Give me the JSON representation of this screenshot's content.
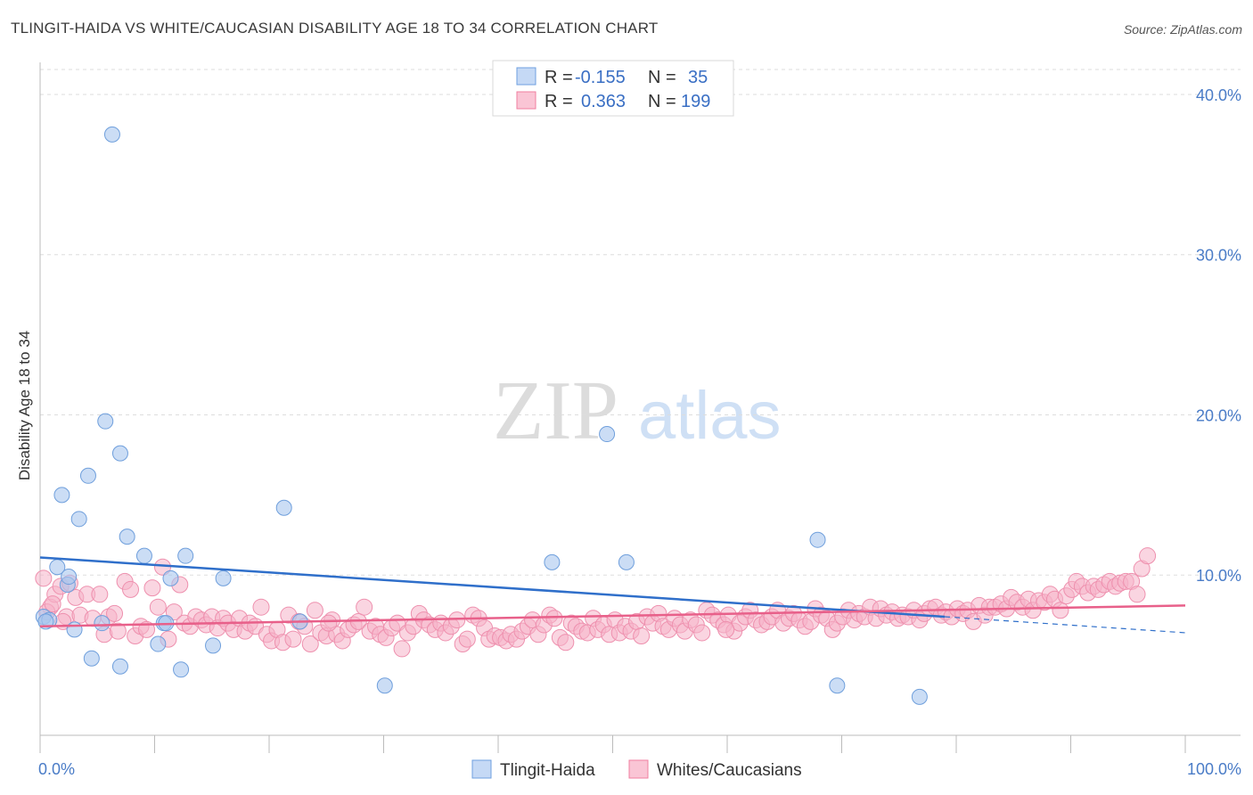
{
  "title": "TLINGIT-HAIDA VS WHITE/CAUCASIAN DISABILITY AGE 18 TO 34 CORRELATION CHART",
  "source": "Source: ZipAtlas.com",
  "watermark": {
    "zip": "ZIP",
    "atlas": "atlas"
  },
  "legend_top": [
    {
      "r_label": "R =",
      "r_value": "-0.155",
      "n_label": "N =",
      "n_value": "35",
      "color": "#6fa0e0",
      "fill": "#c5d9f5"
    },
    {
      "r_label": "R =",
      "r_value": "0.363",
      "n_label": "N =",
      "n_value": "199",
      "color": "#f07fa0",
      "fill": "#fac5d5"
    }
  ],
  "colors": {
    "blue_line": "#2f6fca",
    "pink_line": "#e8608a",
    "blue_point": "#a9c6ee",
    "pink_point": "#f6b3c8",
    "axis_text": "#4a7cc7"
  },
  "chart_data": {
    "type": "scatter",
    "title": "TLINGIT-HAIDA VS WHITE/CAUCASIAN DISABILITY AGE 18 TO 34 CORRELATION CHART",
    "xlabel": "",
    "ylabel": "Disability Age 18 to 34",
    "xlim": [
      0,
      100
    ],
    "ylim": [
      0,
      42
    ],
    "x_tick_labels": [
      "0.0%",
      "100.0%"
    ],
    "y_ticks": [
      10,
      20,
      30,
      40
    ],
    "y_tick_labels": [
      "10.0%",
      "20.0%",
      "30.0%",
      "40.0%"
    ],
    "grid": true,
    "legend_position": "top-center",
    "series": [
      {
        "name": "Tlingit-Haida",
        "r": -0.155,
        "n": 35,
        "trend": {
          "x0": 0,
          "y0": 11.1,
          "x1": 79,
          "y1": 7.4,
          "dashed_to_x": 100,
          "dashed_to_y": 6.4
        },
        "points": [
          [
            0.3,
            7.4
          ],
          [
            0.8,
            7.2
          ],
          [
            1.5,
            10.5
          ],
          [
            1.9,
            15.0
          ],
          [
            2.4,
            9.4
          ],
          [
            2.5,
            9.9
          ],
          [
            3.0,
            6.6
          ],
          [
            3.4,
            13.5
          ],
          [
            4.2,
            16.2
          ],
          [
            4.5,
            4.8
          ],
          [
            5.4,
            7.0
          ],
          [
            5.7,
            19.6
          ],
          [
            6.3,
            37.5
          ],
          [
            7.0,
            4.3
          ],
          [
            7.0,
            17.6
          ],
          [
            7.6,
            12.4
          ],
          [
            9.1,
            11.2
          ],
          [
            10.3,
            5.7
          ],
          [
            10.8,
            7.0
          ],
          [
            11.0,
            7.0
          ],
          [
            11.4,
            9.8
          ],
          [
            12.3,
            4.1
          ],
          [
            12.7,
            11.2
          ],
          [
            15.1,
            5.6
          ],
          [
            16.0,
            9.8
          ],
          [
            21.3,
            14.2
          ],
          [
            22.7,
            7.1
          ],
          [
            30.1,
            3.1
          ],
          [
            44.7,
            10.8
          ],
          [
            49.5,
            18.8
          ],
          [
            51.2,
            10.8
          ],
          [
            67.9,
            12.2
          ],
          [
            69.6,
            3.1
          ],
          [
            76.8,
            2.4
          ],
          [
            0.5,
            7.1
          ]
        ]
      },
      {
        "name": "Whites/Caucasians",
        "r": 0.363,
        "n": 199,
        "trend": {
          "x0": 0,
          "y0": 6.8,
          "x1": 100,
          "y1": 8.1
        },
        "points": [
          [
            0.3,
            9.8
          ],
          [
            0.9,
            8.0
          ],
          [
            1.3,
            8.8
          ],
          [
            1.8,
            9.3
          ],
          [
            2.3,
            7.4
          ],
          [
            2.6,
            9.5
          ],
          [
            3.1,
            8.6
          ],
          [
            3.5,
            7.5
          ],
          [
            4.1,
            8.8
          ],
          [
            4.6,
            7.3
          ],
          [
            5.2,
            8.8
          ],
          [
            5.6,
            6.3
          ],
          [
            6.0,
            7.4
          ],
          [
            6.5,
            7.6
          ],
          [
            6.8,
            6.5
          ],
          [
            7.4,
            9.6
          ],
          [
            7.9,
            9.1
          ],
          [
            8.3,
            6.2
          ],
          [
            8.8,
            6.8
          ],
          [
            9.3,
            6.6
          ],
          [
            9.8,
            9.2
          ],
          [
            10.3,
            8.0
          ],
          [
            10.7,
            10.5
          ],
          [
            11.2,
            6.0
          ],
          [
            11.7,
            7.7
          ],
          [
            12.2,
            9.4
          ],
          [
            12.6,
            7.0
          ],
          [
            13.1,
            6.8
          ],
          [
            13.6,
            7.4
          ],
          [
            14.1,
            7.2
          ],
          [
            14.5,
            6.9
          ],
          [
            15.0,
            7.4
          ],
          [
            15.5,
            6.7
          ],
          [
            16.0,
            7.3
          ],
          [
            16.4,
            7.0
          ],
          [
            16.9,
            6.6
          ],
          [
            17.4,
            7.3
          ],
          [
            17.9,
            6.5
          ],
          [
            18.3,
            7.0
          ],
          [
            18.8,
            6.8
          ],
          [
            19.3,
            8.0
          ],
          [
            19.8,
            6.3
          ],
          [
            20.2,
            5.9
          ],
          [
            20.7,
            6.6
          ],
          [
            21.2,
            5.8
          ],
          [
            21.7,
            7.5
          ],
          [
            22.1,
            6.0
          ],
          [
            22.6,
            7.1
          ],
          [
            23.1,
            6.8
          ],
          [
            23.6,
            5.7
          ],
          [
            24.0,
            7.8
          ],
          [
            24.5,
            6.4
          ],
          [
            25.0,
            6.2
          ],
          [
            25.5,
            7.2
          ],
          [
            25.9,
            6.3
          ],
          [
            26.4,
            5.9
          ],
          [
            26.9,
            6.6
          ],
          [
            27.4,
            6.9
          ],
          [
            27.8,
            7.1
          ],
          [
            28.3,
            8.0
          ],
          [
            28.8,
            6.5
          ],
          [
            29.3,
            6.8
          ],
          [
            29.7,
            6.3
          ],
          [
            30.2,
            6.1
          ],
          [
            30.7,
            6.7
          ],
          [
            31.2,
            7.0
          ],
          [
            31.6,
            5.4
          ],
          [
            32.1,
            6.4
          ],
          [
            32.6,
            6.8
          ],
          [
            33.1,
            7.6
          ],
          [
            33.5,
            7.2
          ],
          [
            34.0,
            6.9
          ],
          [
            34.5,
            6.6
          ],
          [
            35.0,
            7.0
          ],
          [
            35.4,
            6.4
          ],
          [
            35.9,
            6.8
          ],
          [
            36.4,
            7.2
          ],
          [
            36.9,
            5.7
          ],
          [
            37.3,
            6.0
          ],
          [
            37.8,
            7.5
          ],
          [
            38.3,
            7.3
          ],
          [
            38.8,
            6.7
          ],
          [
            39.2,
            6.0
          ],
          [
            39.7,
            6.2
          ],
          [
            40.2,
            6.1
          ],
          [
            40.7,
            5.9
          ],
          [
            41.1,
            6.3
          ],
          [
            41.6,
            6.0
          ],
          [
            42.1,
            6.5
          ],
          [
            42.6,
            6.8
          ],
          [
            43.0,
            7.2
          ],
          [
            43.5,
            6.3
          ],
          [
            44.0,
            6.9
          ],
          [
            44.5,
            7.5
          ],
          [
            44.9,
            7.3
          ],
          [
            45.4,
            6.1
          ],
          [
            45.9,
            5.8
          ],
          [
            46.4,
            7.0
          ],
          [
            46.8,
            6.8
          ],
          [
            47.3,
            6.5
          ],
          [
            47.8,
            6.4
          ],
          [
            48.3,
            7.3
          ],
          [
            48.7,
            6.6
          ],
          [
            49.2,
            6.9
          ],
          [
            49.7,
            6.3
          ],
          [
            50.2,
            7.2
          ],
          [
            50.6,
            6.4
          ],
          [
            51.1,
            6.8
          ],
          [
            51.6,
            6.5
          ],
          [
            52.1,
            7.1
          ],
          [
            52.5,
            6.2
          ],
          [
            53.0,
            7.4
          ],
          [
            53.5,
            7.0
          ],
          [
            54.0,
            7.6
          ],
          [
            54.4,
            6.8
          ],
          [
            54.9,
            6.6
          ],
          [
            55.4,
            7.3
          ],
          [
            55.9,
            6.9
          ],
          [
            56.3,
            6.5
          ],
          [
            56.8,
            7.2
          ],
          [
            57.3,
            6.9
          ],
          [
            57.8,
            6.4
          ],
          [
            58.2,
            7.8
          ],
          [
            58.7,
            7.5
          ],
          [
            59.2,
            7.2
          ],
          [
            59.7,
            6.9
          ],
          [
            60.1,
            7.5
          ],
          [
            60.6,
            6.5
          ],
          [
            61.1,
            7.0
          ],
          [
            61.6,
            7.4
          ],
          [
            62.0,
            7.8
          ],
          [
            62.5,
            7.2
          ],
          [
            63.0,
            6.9
          ],
          [
            63.5,
            7.1
          ],
          [
            63.9,
            7.4
          ],
          [
            64.4,
            7.8
          ],
          [
            64.9,
            7.0
          ],
          [
            65.4,
            7.3
          ],
          [
            65.8,
            7.6
          ],
          [
            66.3,
            7.2
          ],
          [
            66.8,
            6.8
          ],
          [
            67.3,
            7.1
          ],
          [
            67.7,
            7.9
          ],
          [
            68.2,
            7.5
          ],
          [
            68.7,
            7.3
          ],
          [
            69.2,
            6.6
          ],
          [
            69.6,
            7.0
          ],
          [
            70.1,
            7.4
          ],
          [
            70.6,
            7.8
          ],
          [
            71.1,
            7.2
          ],
          [
            71.5,
            7.6
          ],
          [
            72.0,
            7.4
          ],
          [
            72.5,
            8.0
          ],
          [
            73.0,
            7.3
          ],
          [
            73.4,
            7.9
          ],
          [
            73.9,
            7.5
          ],
          [
            74.4,
            7.7
          ],
          [
            74.9,
            7.3
          ],
          [
            75.3,
            7.5
          ],
          [
            75.8,
            7.4
          ],
          [
            76.3,
            7.8
          ],
          [
            76.8,
            7.2
          ],
          [
            77.2,
            7.6
          ],
          [
            77.7,
            7.9
          ],
          [
            78.2,
            8.0
          ],
          [
            78.7,
            7.5
          ],
          [
            79.1,
            7.7
          ],
          [
            79.6,
            7.4
          ],
          [
            80.1,
            7.9
          ],
          [
            80.6,
            7.6
          ],
          [
            81.0,
            7.8
          ],
          [
            81.5,
            7.1
          ],
          [
            82.0,
            8.1
          ],
          [
            82.5,
            7.5
          ],
          [
            82.9,
            8.0
          ],
          [
            83.4,
            8.0
          ],
          [
            83.9,
            8.2
          ],
          [
            84.4,
            7.9
          ],
          [
            84.8,
            8.6
          ],
          [
            85.3,
            8.3
          ],
          [
            85.8,
            8.0
          ],
          [
            86.3,
            8.5
          ],
          [
            86.7,
            7.8
          ],
          [
            87.2,
            8.4
          ],
          [
            87.7,
            8.3
          ],
          [
            88.2,
            8.8
          ],
          [
            88.6,
            8.5
          ],
          [
            89.1,
            7.8
          ],
          [
            89.6,
            8.7
          ],
          [
            90.1,
            9.1
          ],
          [
            90.5,
            9.6
          ],
          [
            91.0,
            9.3
          ],
          [
            91.5,
            8.9
          ],
          [
            92.0,
            9.3
          ],
          [
            92.4,
            9.1
          ],
          [
            92.9,
            9.4
          ],
          [
            93.4,
            9.6
          ],
          [
            93.9,
            9.3
          ],
          [
            94.3,
            9.5
          ],
          [
            94.8,
            9.6
          ],
          [
            95.3,
            9.6
          ],
          [
            95.8,
            8.8
          ],
          [
            96.2,
            10.4
          ],
          [
            96.7,
            11.2
          ],
          [
            0.6,
            7.7
          ],
          [
            1.1,
            8.2
          ],
          [
            2.0,
            7.1
          ],
          [
            25.2,
            7.0
          ],
          [
            59.9,
            6.6
          ]
        ]
      }
    ]
  },
  "legend_bottom": [
    {
      "label": "Tlingit-Haida"
    },
    {
      "label": "Whites/Caucasians"
    }
  ]
}
